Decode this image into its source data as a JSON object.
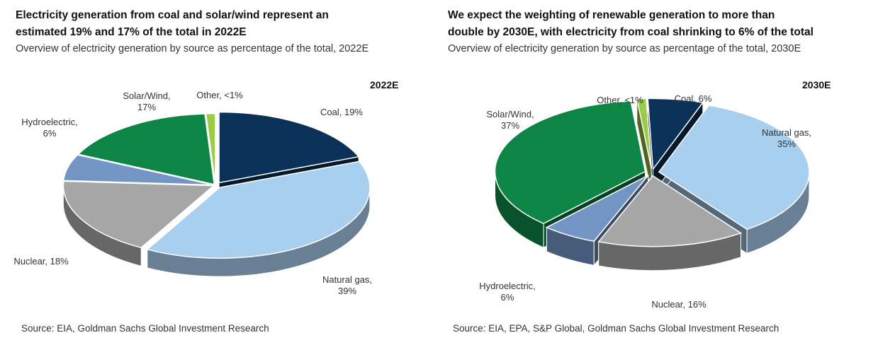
{
  "chart_data": [
    {
      "type": "pie",
      "title_lines": [
        "Electricity generation from coal and solar/wind represent an",
        "estimated 19% and 17% of the total in 2022E"
      ],
      "subtitle": "Overview of electricity generation by source as percentage of the total, 2022E",
      "year_label": "2022E",
      "source": "Source: EIA, Goldman Sachs Global Investment Research",
      "slices": [
        {
          "name": "Coal",
          "value": 19,
          "label_lines": [
            "Coal, 19%"
          ],
          "color": "#0b3158",
          "exploded": true
        },
        {
          "name": "Natural gas",
          "value": 39,
          "label_lines": [
            "Natural gas,",
            "39%"
          ],
          "color": "#a9cfee",
          "exploded": true
        },
        {
          "name": "Nuclear",
          "value": 18,
          "label_lines": [
            "Nuclear, 18%"
          ],
          "color": "#a6a6a6",
          "exploded": false
        },
        {
          "name": "Hydroelectric",
          "value": 6,
          "label_lines": [
            "Hydroelectric,",
            "6%"
          ],
          "color": "#7395c6",
          "exploded": false
        },
        {
          "name": "Solar/Wind",
          "value": 17,
          "label_lines": [
            "Solar/Wind,",
            "17%"
          ],
          "color": "#0d8645",
          "exploded": false
        },
        {
          "name": "Other",
          "value": 1,
          "label_lines": [
            "Other, <1%"
          ],
          "color": "#9ccc44",
          "exploded": false
        }
      ]
    },
    {
      "type": "pie",
      "title_lines": [
        "We expect the weighting of renewable generation to more than",
        "double by 2030E, with electricity from coal shrinking to 6% of the total"
      ],
      "subtitle": "Overview of electricity generation by source as percentage of the total, 2030E",
      "year_label": "2030E",
      "source": "Source: EIA, EPA, S&P Global, Goldman Sachs Global Investment Research",
      "slices": [
        {
          "name": "Coal",
          "value": 6,
          "label_lines": [
            "Coal, 6%"
          ],
          "color": "#0b3158",
          "exploded": true
        },
        {
          "name": "Natural gas",
          "value": 35,
          "label_lines": [
            "Natural gas,",
            "35%"
          ],
          "color": "#a9cfee",
          "exploded": true
        },
        {
          "name": "Nuclear",
          "value": 16,
          "label_lines": [
            "Nuclear, 16%"
          ],
          "color": "#a6a6a6",
          "exploded": true
        },
        {
          "name": "Hydroelectric",
          "value": 6,
          "label_lines": [
            "Hydroelectric,",
            "6%"
          ],
          "color": "#7395c6",
          "exploded": true
        },
        {
          "name": "Solar/Wind",
          "value": 37,
          "label_lines": [
            "Solar/Wind,",
            "37%"
          ],
          "color": "#0d8645",
          "exploded": true
        },
        {
          "name": "Other",
          "value": 1,
          "label_lines": [
            "Other, <1%"
          ],
          "color": "#9ccc44",
          "exploded": true
        }
      ]
    }
  ]
}
